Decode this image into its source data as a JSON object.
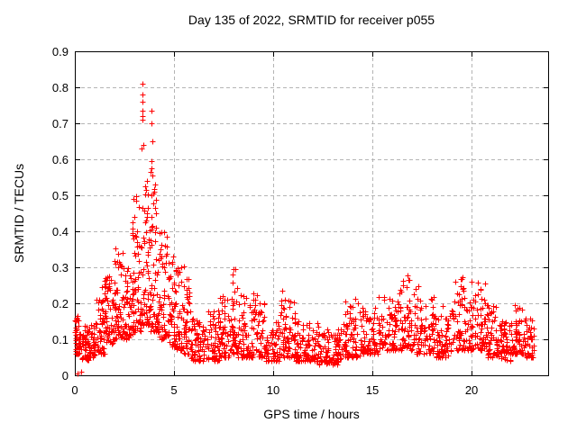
{
  "window": {
    "title": "Day 135 of 2022, SRMTID for receiver p055"
  },
  "chart_data": {
    "type": "scatter",
    "title": "Day 135 of 2022, SRMTID for receiver p055",
    "xlabel": "GPS time / hours",
    "ylabel": "SRMTID / TECUs",
    "xlim": [
      0,
      23.86
    ],
    "ylim": [
      0,
      0.9
    ],
    "xticks": [
      {
        "v": 0,
        "label": "0"
      },
      {
        "v": 5,
        "label": "5"
      },
      {
        "v": 10,
        "label": "10"
      },
      {
        "v": 15,
        "label": "15"
      },
      {
        "v": 20,
        "label": "20"
      }
    ],
    "yticks": [
      {
        "v": 0.0,
        "label": "0"
      },
      {
        "v": 0.1,
        "label": "0.1"
      },
      {
        "v": 0.2,
        "label": "0.2"
      },
      {
        "v": 0.3,
        "label": "0.3"
      },
      {
        "v": 0.4,
        "label": "0.4"
      },
      {
        "v": 0.5,
        "label": "0.5"
      },
      {
        "v": 0.6,
        "label": "0.6"
      },
      {
        "v": 0.7,
        "label": "0.7"
      },
      {
        "v": 0.8,
        "label": "0.8"
      },
      {
        "v": 0.9,
        "label": "0.9"
      }
    ],
    "grid": true,
    "legend": "none",
    "marker": "plus",
    "marker_size_px": 7,
    "marker_color": "#ff0000",
    "grid_color": "#b4b4b4",
    "axis_color": "#000000",
    "seed": 135,
    "density_bins": [
      {
        "t": [
          0.0,
          0.3
        ],
        "v": [
          0.06,
          0.17
        ],
        "n": 45,
        "bias": 1.3
      },
      {
        "t": [
          0.3,
          0.7
        ],
        "v": [
          0.04,
          0.14
        ],
        "n": 40,
        "bias": 1.4
      },
      {
        "t": [
          0.7,
          1.1
        ],
        "v": [
          0.05,
          0.15
        ],
        "n": 40,
        "bias": 1.4
      },
      {
        "t": [
          1.1,
          1.5
        ],
        "v": [
          0.06,
          0.21
        ],
        "n": 45,
        "bias": 1.5
      },
      {
        "t": [
          1.5,
          1.9
        ],
        "v": [
          0.08,
          0.28
        ],
        "n": 50,
        "bias": 1.4
      },
      {
        "t": [
          1.9,
          2.4
        ],
        "v": [
          0.1,
          0.35
        ],
        "n": 60,
        "bias": 1.5
      },
      {
        "t": [
          2.4,
          2.9
        ],
        "v": [
          0.1,
          0.3
        ],
        "n": 60,
        "bias": 1.4
      },
      {
        "t": [
          2.9,
          3.3
        ],
        "v": [
          0.12,
          0.5
        ],
        "n": 60,
        "bias": 1.6
      },
      {
        "t": [
          3.3,
          3.75
        ],
        "v": [
          0.14,
          0.52
        ],
        "n": 62,
        "bias": 1.7
      },
      {
        "t": [
          3.75,
          4.2
        ],
        "v": [
          0.12,
          0.52
        ],
        "n": 60,
        "bias": 1.7
      },
      {
        "t": [
          4.2,
          4.65
        ],
        "v": [
          0.1,
          0.4
        ],
        "n": 55,
        "bias": 1.6
      },
      {
        "t": [
          4.65,
          5.1
        ],
        "v": [
          0.08,
          0.33
        ],
        "n": 55,
        "bias": 1.6
      },
      {
        "t": [
          5.1,
          5.5
        ],
        "v": [
          0.07,
          0.3
        ],
        "n": 45,
        "bias": 1.8
      },
      {
        "t": [
          5.5,
          5.85
        ],
        "v": [
          0.06,
          0.27
        ],
        "n": 40,
        "bias": 1.8
      },
      {
        "t": [
          5.85,
          6.6
        ],
        "v": [
          0.04,
          0.16
        ],
        "n": 65,
        "bias": 1.5
      },
      {
        "t": [
          6.6,
          7.3
        ],
        "v": [
          0.04,
          0.18
        ],
        "n": 60,
        "bias": 1.7
      },
      {
        "t": [
          7.3,
          7.9
        ],
        "v": [
          0.05,
          0.22
        ],
        "n": 55,
        "bias": 1.8
      },
      {
        "t": [
          7.9,
          8.2
        ],
        "v": [
          0.06,
          0.3
        ],
        "n": 35,
        "bias": 1.8
      },
      {
        "t": [
          8.2,
          9.2
        ],
        "v": [
          0.05,
          0.23
        ],
        "n": 85,
        "bias": 1.8
      },
      {
        "t": [
          9.2,
          9.6
        ],
        "v": [
          0.05,
          0.2
        ],
        "n": 35,
        "bias": 1.8
      },
      {
        "t": [
          9.6,
          10.3
        ],
        "v": [
          0.04,
          0.15
        ],
        "n": 55,
        "bias": 1.5
      },
      {
        "t": [
          10.3,
          11.1
        ],
        "v": [
          0.05,
          0.21
        ],
        "n": 70,
        "bias": 1.7
      },
      {
        "t": [
          11.1,
          12.3
        ],
        "v": [
          0.04,
          0.15
        ],
        "n": 100,
        "bias": 1.6
      },
      {
        "t": [
          12.3,
          13.4
        ],
        "v": [
          0.03,
          0.13
        ],
        "n": 90,
        "bias": 1.5
      },
      {
        "t": [
          13.4,
          14.4
        ],
        "v": [
          0.05,
          0.215
        ],
        "n": 85,
        "bias": 1.6
      },
      {
        "t": [
          14.4,
          15.3
        ],
        "v": [
          0.06,
          0.19
        ],
        "n": 75,
        "bias": 1.6
      },
      {
        "t": [
          15.3,
          16.2
        ],
        "v": [
          0.07,
          0.22
        ],
        "n": 75,
        "bias": 1.6
      },
      {
        "t": [
          16.2,
          17.2
        ],
        "v": [
          0.07,
          0.27
        ],
        "n": 80,
        "bias": 1.7
      },
      {
        "t": [
          17.2,
          18.1
        ],
        "v": [
          0.06,
          0.22
        ],
        "n": 70,
        "bias": 1.7
      },
      {
        "t": [
          18.1,
          19.1
        ],
        "v": [
          0.05,
          0.2
        ],
        "n": 75,
        "bias": 1.7
      },
      {
        "t": [
          19.1,
          20.0
        ],
        "v": [
          0.07,
          0.27
        ],
        "n": 75,
        "bias": 1.6
      },
      {
        "t": [
          20.0,
          20.7
        ],
        "v": [
          0.07,
          0.26
        ],
        "n": 60,
        "bias": 1.7
      },
      {
        "t": [
          20.7,
          21.4
        ],
        "v": [
          0.05,
          0.2
        ],
        "n": 60,
        "bias": 1.7
      },
      {
        "t": [
          21.4,
          22.0
        ],
        "v": [
          0.04,
          0.15
        ],
        "n": 55,
        "bias": 1.5
      },
      {
        "t": [
          22.0,
          22.6
        ],
        "v": [
          0.06,
          0.19
        ],
        "n": 55,
        "bias": 1.6
      },
      {
        "t": [
          22.6,
          23.15
        ],
        "v": [
          0.05,
          0.16
        ],
        "n": 50,
        "bias": 1.5
      }
    ],
    "outlier_points": [
      [
        0.15,
        0.005
      ],
      [
        0.32,
        0.01
      ],
      [
        3.41,
        0.81
      ],
      [
        3.41,
        0.78
      ],
      [
        3.42,
        0.76
      ],
      [
        3.4,
        0.735
      ],
      [
        3.86,
        0.735
      ],
      [
        3.39,
        0.72
      ],
      [
        3.43,
        0.71
      ],
      [
        3.86,
        0.7
      ],
      [
        3.9,
        0.65
      ],
      [
        3.45,
        0.64
      ],
      [
        3.37,
        0.63
      ],
      [
        3.86,
        0.595
      ],
      [
        3.88,
        0.575
      ],
      [
        3.84,
        0.565
      ],
      [
        3.91,
        0.555
      ],
      [
        3.62,
        0.54
      ],
      [
        3.55,
        0.525
      ],
      [
        4.05,
        0.53
      ],
      [
        3.98,
        0.51
      ],
      [
        3.95,
        0.505
      ],
      [
        3.1,
        0.497
      ],
      [
        2.05,
        0.352
      ],
      [
        1.35,
        0.245
      ],
      [
        5.52,
        0.302
      ],
      [
        8.02,
        0.295
      ],
      [
        10.45,
        0.235
      ],
      [
        16.75,
        0.278
      ],
      [
        19.55,
        0.272
      ],
      [
        20.3,
        0.258
      ],
      [
        17.32,
        0.248
      ],
      [
        22.2,
        0.195
      ]
    ]
  }
}
